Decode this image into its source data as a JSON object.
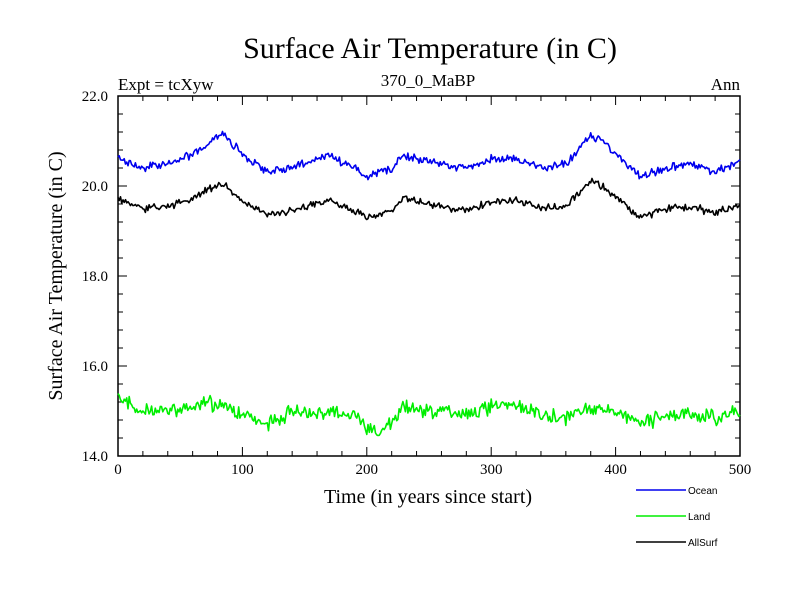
{
  "chart_data": {
    "type": "line",
    "title": "Surface Air Temperature (in C)",
    "subtitle": "370_0_MaBP",
    "left_label": "Expt = tcXyw",
    "right_label": "Ann",
    "xlabel": "Time (in years since start)",
    "ylabel": "Surface Air Temperature (in C)",
    "xlim": [
      0,
      500
    ],
    "ylim": [
      14.0,
      22.0
    ],
    "x_ticks": [
      0,
      100,
      200,
      300,
      400,
      500
    ],
    "x_tick_labels": [
      "0",
      "100",
      "200",
      "300",
      "400",
      "500"
    ],
    "y_ticks": [
      14.0,
      16.0,
      18.0,
      20.0,
      22.0
    ],
    "y_tick_labels": [
      "14.0",
      "16.0",
      "18.0",
      "20.0",
      "22.0"
    ],
    "grid": false,
    "legend_position": "bottom-right, below plot",
    "x": [
      0,
      20,
      40,
      60,
      70,
      80,
      85,
      90,
      100,
      120,
      140,
      160,
      170,
      180,
      190,
      200,
      210,
      220,
      230,
      240,
      260,
      280,
      300,
      320,
      340,
      360,
      370,
      380,
      390,
      400,
      420,
      440,
      460,
      480,
      500
    ],
    "series": [
      {
        "name": "Ocean",
        "color": "#0000ee",
        "values": [
          20.6,
          20.4,
          20.5,
          20.7,
          20.9,
          21.1,
          21.2,
          21.0,
          20.7,
          20.3,
          20.4,
          20.6,
          20.7,
          20.5,
          20.4,
          20.2,
          20.3,
          20.4,
          20.7,
          20.6,
          20.5,
          20.4,
          20.6,
          20.6,
          20.4,
          20.5,
          20.8,
          21.1,
          21.0,
          20.7,
          20.2,
          20.4,
          20.5,
          20.3,
          20.55
        ]
      },
      {
        "name": "Land",
        "color": "#00ee00",
        "values": [
          15.3,
          15.0,
          15.0,
          15.1,
          15.2,
          15.1,
          15.2,
          15.0,
          14.95,
          14.7,
          15.0,
          14.9,
          15.05,
          14.95,
          14.9,
          14.6,
          14.5,
          14.8,
          15.1,
          15.0,
          15.0,
          14.9,
          15.1,
          15.15,
          14.9,
          14.85,
          15.0,
          15.1,
          15.0,
          14.95,
          14.7,
          14.9,
          14.9,
          14.85,
          15.0
        ]
      },
      {
        "name": "AllSurf",
        "color": "#000000",
        "values": [
          19.7,
          19.5,
          19.55,
          19.7,
          19.9,
          20.0,
          20.05,
          19.9,
          19.65,
          19.35,
          19.45,
          19.6,
          19.7,
          19.55,
          19.45,
          19.3,
          19.35,
          19.45,
          19.75,
          19.65,
          19.55,
          19.45,
          19.65,
          19.7,
          19.5,
          19.55,
          19.85,
          20.1,
          20.0,
          19.75,
          19.3,
          19.5,
          19.55,
          19.4,
          19.6
        ]
      }
    ]
  }
}
